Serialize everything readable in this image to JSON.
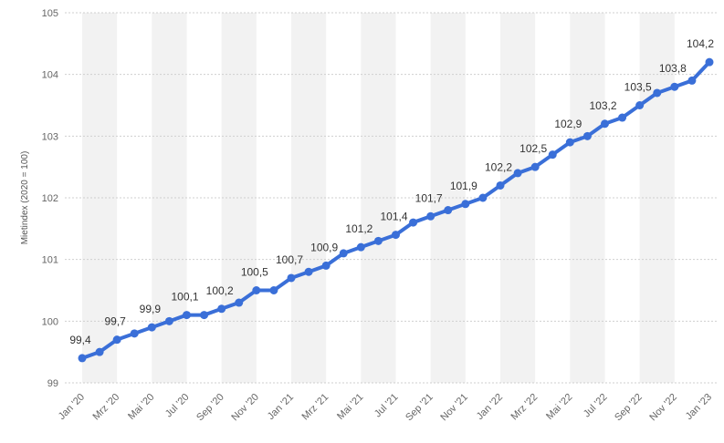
{
  "chart_data": {
    "type": "line",
    "title": "",
    "xlabel": "",
    "ylabel": "Mietindex (2020 = 100)",
    "ylim": [
      99,
      105
    ],
    "yticks": [
      99,
      100,
      101,
      102,
      103,
      104,
      105
    ],
    "grid": true,
    "legend": "none",
    "x": [
      "Jan '20",
      "Feb '20",
      "Mrz '20",
      "Apr '20",
      "Mai '20",
      "Jun '20",
      "Jul '20",
      "Aug '20",
      "Sep '20",
      "Okt '20",
      "Nov '20",
      "Dez '20",
      "Jan '21",
      "Feb '21",
      "Mrz '21",
      "Apr '21",
      "Mai '21",
      "Jun '21",
      "Jul '21",
      "Aug '21",
      "Sep '21",
      "Okt '21",
      "Nov '21",
      "Dez '21",
      "Jan '22",
      "Feb '22",
      "Mrz '22",
      "Apr '22",
      "Mai '22",
      "Jun '22",
      "Jul '22",
      "Aug '22",
      "Sep '22",
      "Okt '22",
      "Nov '22",
      "Dez '22",
      "Jan '23"
    ],
    "x_tick_labels": [
      "Jan '20",
      "Mrz '20",
      "Mai '20",
      "Jul '20",
      "Sep '20",
      "Nov '20",
      "Jan '21",
      "Mrz '21",
      "Mai '21",
      "Jul '21",
      "Sep '21",
      "Nov '21",
      "Jan '22",
      "Mrz '22",
      "Mai '22",
      "Jul '22",
      "Sep '22",
      "Nov '22",
      "Jan '23"
    ],
    "series": [
      {
        "values": [
          99.4,
          99.5,
          99.7,
          99.8,
          99.9,
          100.0,
          100.1,
          100.1,
          100.2,
          100.3,
          100.5,
          100.5,
          100.7,
          100.8,
          100.9,
          101.1,
          101.2,
          101.3,
          101.4,
          101.6,
          101.7,
          101.8,
          101.9,
          102.0,
          102.2,
          102.4,
          102.5,
          102.7,
          102.9,
          103.0,
          103.2,
          103.3,
          103.5,
          103.7,
          103.8,
          103.9,
          104.2
        ],
        "labels": [
          "99,4",
          "",
          "99,7",
          "",
          "99,9",
          "",
          "100,1",
          "",
          "100,2",
          "",
          "100,5",
          "",
          "100,7",
          "",
          "100,9",
          "",
          "101,2",
          "",
          "101,4",
          "",
          "101,7",
          "",
          "101,9",
          "",
          "102,2",
          "",
          "102,5",
          "",
          "102,9",
          "",
          "103,2",
          "",
          "103,5",
          "",
          "103,8",
          "",
          "104,2"
        ],
        "color": "#3a6fd8"
      }
    ],
    "band_color": "#f2f2f2",
    "grid_color": "#cfcfcf"
  }
}
